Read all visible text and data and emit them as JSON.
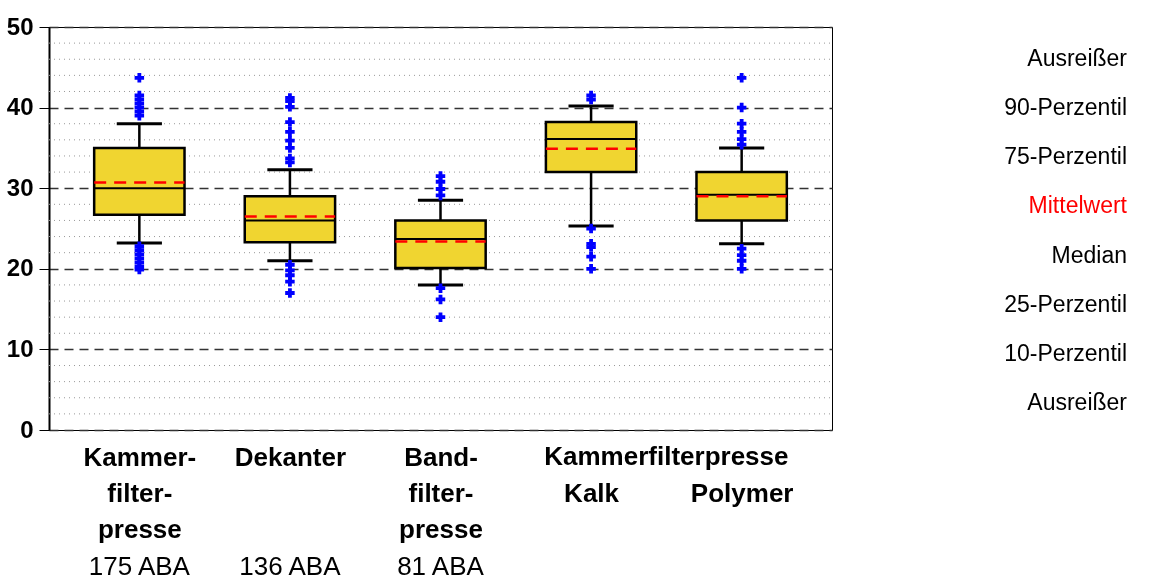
{
  "chart_data": {
    "type": "box",
    "categories": [
      "Kammer-\nfilter-\npresse",
      "Dekanter",
      "Band-\nfilter-\npresse",
      "Kalk",
      "Polymer"
    ],
    "series": [
      {
        "color": "#f0d530",
        "boxes": [
          {
            "low": 23.2,
            "q1": 26.7,
            "median": 30.0,
            "q3": 35.0,
            "high": 38.0,
            "mean": 30.7,
            "outliers": [
              43.7,
              41.5,
              41.0,
              40.5,
              40.0,
              39.5,
              39.0,
              22.8,
              22.3,
              21.8,
              21.3,
              20.8,
              20.3,
              19.9
            ]
          },
          {
            "low": 21.0,
            "q1": 23.3,
            "median": 26.0,
            "q3": 29.0,
            "high": 32.3,
            "mean": 26.5,
            "outliers": [
              41.2,
              40.8,
              40.1,
              38.2,
              37.0,
              35.9,
              35.0,
              33.7,
              33.2,
              20.5,
              19.8,
              19.2,
              18.4,
              17.0
            ]
          },
          {
            "low": 18.0,
            "q1": 20.1,
            "median": 23.7,
            "q3": 26.0,
            "high": 28.5,
            "mean": 23.4,
            "outliers": [
              31.5,
              30.8,
              29.9,
              29.1,
              17.6,
              16.2,
              14.0
            ]
          },
          {
            "low": 25.3,
            "q1": 32.0,
            "median": 36.1,
            "q3": 38.2,
            "high": 40.2,
            "mean": 34.9,
            "outliers": [
              41.5,
              41.0,
              25.0,
              23.1,
              22.7,
              21.5,
              20.0
            ]
          },
          {
            "low": 23.1,
            "q1": 26.0,
            "median": 29.2,
            "q3": 32.0,
            "high": 35.0,
            "mean": 29.0,
            "outliers": [
              43.7,
              40.0,
              38.0,
              37.0,
              36.1,
              35.4,
              22.5,
              21.7,
              21.0,
              20.0
            ]
          }
        ]
      }
    ],
    "ylim": [
      0,
      50
    ],
    "yticks": [
      0,
      {
        "value": 2,
        "label": null
      },
      {
        "value": 4,
        "label": null
      },
      {
        "value": 6,
        "label": null
      },
      {
        "value": 8,
        "label": null
      },
      10,
      {
        "value": 12,
        "label": null
      },
      {
        "value": 14,
        "label": null
      },
      {
        "value": 16,
        "label": null
      },
      {
        "value": 18,
        "label": null
      },
      20,
      {
        "value": 22,
        "label": null
      },
      {
        "value": 24,
        "label": null
      },
      {
        "value": 26,
        "label": null
      },
      {
        "value": 28,
        "label": null
      },
      30,
      {
        "value": 32,
        "label": null
      },
      {
        "value": 34,
        "label": null
      },
      {
        "value": 36,
        "label": null
      },
      {
        "value": 38,
        "label": null
      },
      40,
      {
        "value": 42,
        "label": null
      },
      {
        "value": 44,
        "label": null
      },
      {
        "value": 46,
        "label": null
      },
      {
        "value": 48,
        "label": null
      },
      50
    ],
    "grid": "y",
    "annotations": [
      "Kammerfilterpresse",
      "175 ABA",
      "136 ABA",
      "81 ABA",
      "Ausreißer",
      "90-Perzentil",
      "75-Perzentil",
      "Mittelwert",
      "Median",
      "25-Perzentil",
      "10-Perzentil",
      "Ausreißer"
    ]
  }
}
